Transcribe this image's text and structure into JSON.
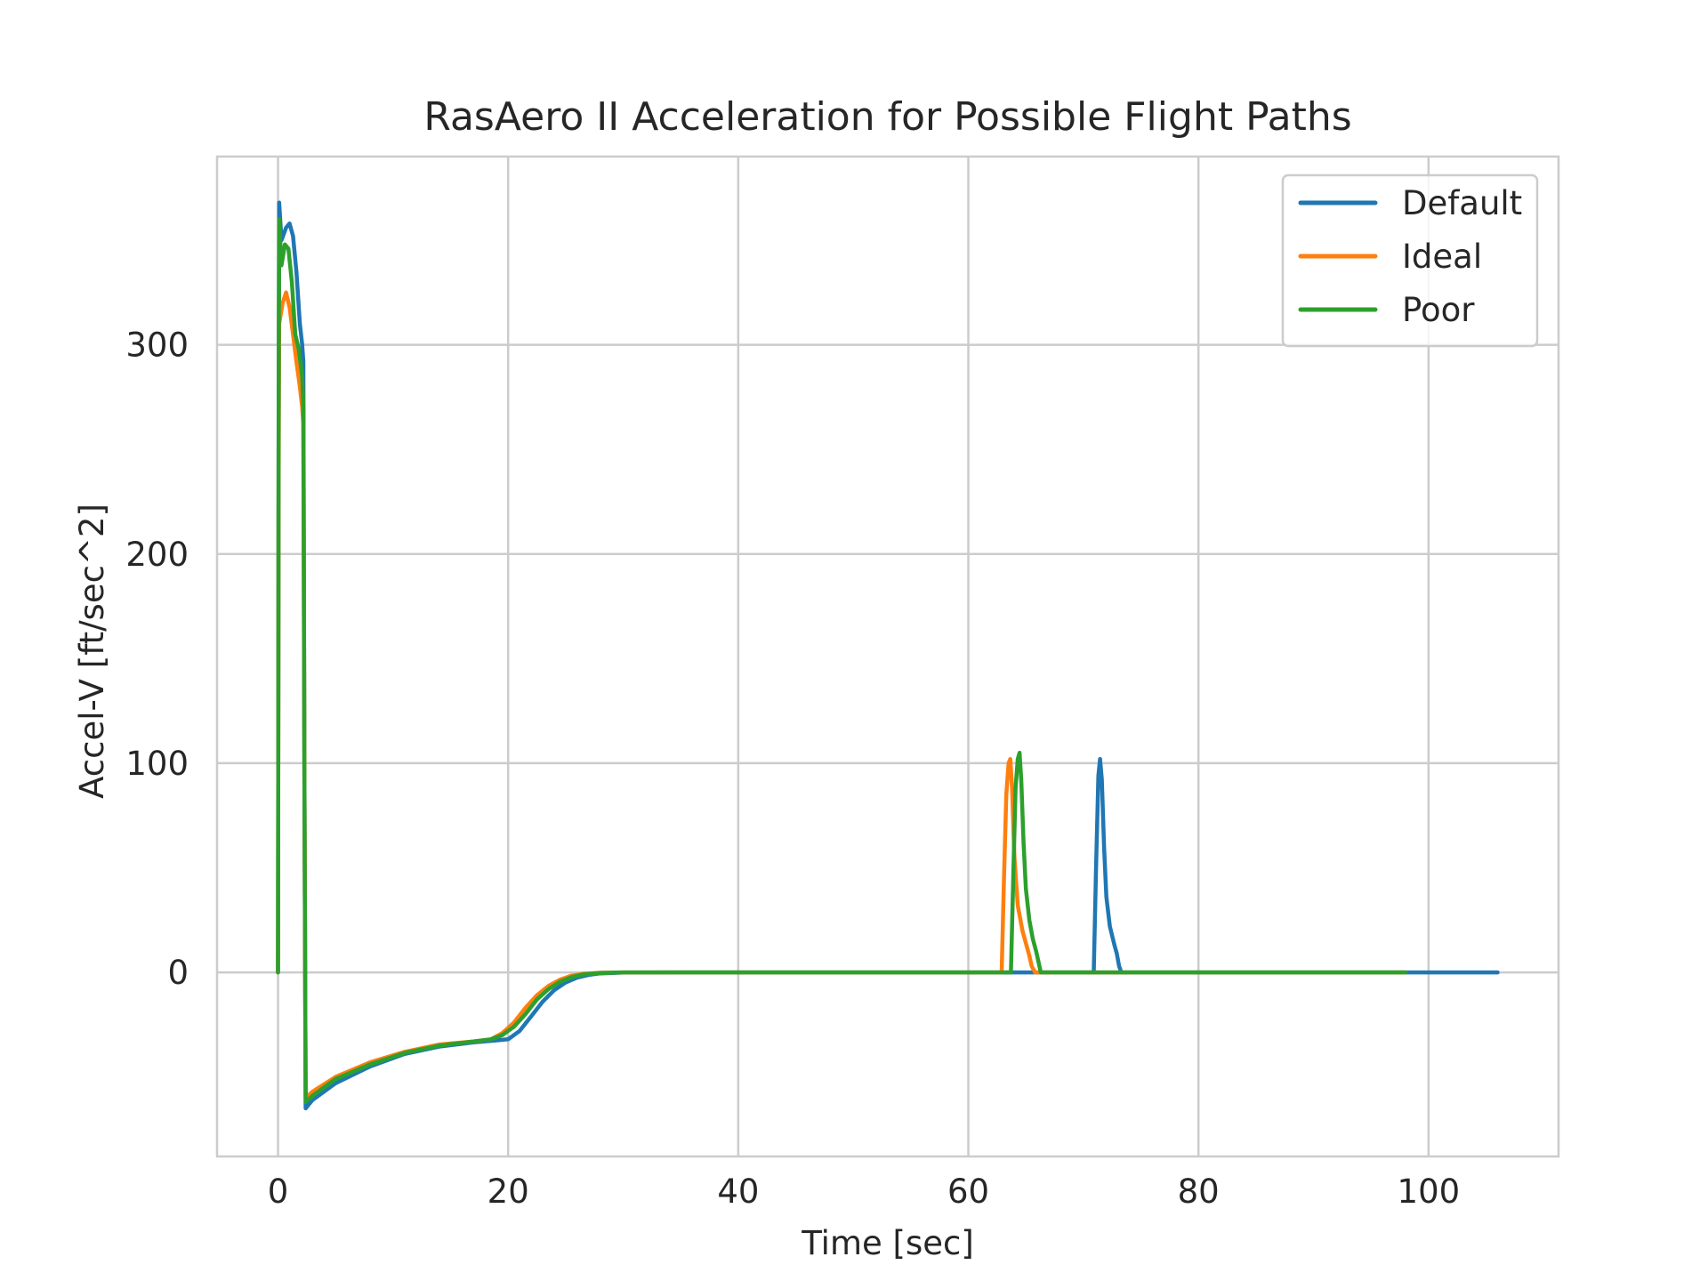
{
  "chart_data": {
    "type": "line",
    "title": "RasAero II Acceleration for Possible Flight Paths",
    "xlabel": "Time [sec]",
    "ylabel": "Accel-V [ft/sec^2]",
    "xlim": [
      -5.3,
      111.3
    ],
    "ylim": [
      -88,
      390
    ],
    "xticks": [
      0,
      20,
      40,
      60,
      80,
      100
    ],
    "yticks": [
      0,
      100,
      200,
      300
    ],
    "grid": true,
    "legend_position": "top-right",
    "series": [
      {
        "name": "Default",
        "color": "#1f77b4",
        "points": [
          [
            0,
            0
          ],
          [
            0.05,
            250
          ],
          [
            0.1,
            368
          ],
          [
            0.3,
            350
          ],
          [
            0.7,
            356
          ],
          [
            1.0,
            358
          ],
          [
            1.3,
            352
          ],
          [
            1.6,
            335
          ],
          [
            1.9,
            310
          ],
          [
            2.1,
            300
          ],
          [
            2.2,
            292
          ],
          [
            2.3,
            80
          ],
          [
            2.4,
            -65
          ],
          [
            3,
            -61
          ],
          [
            5,
            -53
          ],
          [
            8,
            -45
          ],
          [
            11,
            -39
          ],
          [
            14,
            -35.5
          ],
          [
            17,
            -33.5
          ],
          [
            19,
            -32.5
          ],
          [
            20,
            -32
          ],
          [
            21,
            -28
          ],
          [
            22,
            -21
          ],
          [
            23,
            -14
          ],
          [
            24,
            -8.5
          ],
          [
            25,
            -4.8
          ],
          [
            26,
            -2.5
          ],
          [
            27,
            -1.2
          ],
          [
            28,
            -0.5
          ],
          [
            30,
            -0.1
          ],
          [
            35,
            0
          ],
          [
            40,
            0
          ],
          [
            50,
            0
          ],
          [
            60,
            0
          ],
          [
            70,
            0
          ],
          [
            70.9,
            0
          ],
          [
            71.1,
            50
          ],
          [
            71.3,
            94
          ],
          [
            71.45,
            102
          ],
          [
            71.6,
            92
          ],
          [
            71.8,
            60
          ],
          [
            72.0,
            36
          ],
          [
            72.3,
            22
          ],
          [
            72.7,
            13
          ],
          [
            72.9,
            9
          ],
          [
            73.1,
            3
          ],
          [
            73.3,
            0
          ],
          [
            80,
            0
          ],
          [
            90,
            0
          ],
          [
            100,
            0
          ],
          [
            106,
            0
          ]
        ]
      },
      {
        "name": "Ideal",
        "color": "#ff7f0e",
        "points": [
          [
            0,
            0
          ],
          [
            0.05,
            230
          ],
          [
            0.1,
            310
          ],
          [
            0.4,
            320
          ],
          [
            0.7,
            325
          ],
          [
            1.0,
            318
          ],
          [
            1.3,
            305
          ],
          [
            1.6,
            292
          ],
          [
            1.9,
            280
          ],
          [
            2.1,
            270
          ],
          [
            2.2,
            262
          ],
          [
            2.3,
            80
          ],
          [
            2.4,
            -60
          ],
          [
            3,
            -57
          ],
          [
            5,
            -50
          ],
          [
            8,
            -43
          ],
          [
            11,
            -38
          ],
          [
            14,
            -34.5
          ],
          [
            17,
            -33
          ],
          [
            18.5,
            -32
          ],
          [
            19.5,
            -29
          ],
          [
            20.5,
            -24
          ],
          [
            21.5,
            -17
          ],
          [
            22.5,
            -11
          ],
          [
            23.5,
            -6.5
          ],
          [
            24.5,
            -3.5
          ],
          [
            25.5,
            -1.6
          ],
          [
            26.5,
            -0.7
          ],
          [
            28,
            -0.2
          ],
          [
            30,
            0
          ],
          [
            40,
            0
          ],
          [
            50,
            0
          ],
          [
            60,
            0
          ],
          [
            62.9,
            0
          ],
          [
            63.1,
            45
          ],
          [
            63.3,
            85
          ],
          [
            63.5,
            100
          ],
          [
            63.65,
            102
          ],
          [
            63.8,
            88
          ],
          [
            64.0,
            55
          ],
          [
            64.3,
            32
          ],
          [
            64.7,
            20
          ],
          [
            65.1,
            12
          ],
          [
            65.3,
            8
          ],
          [
            65.5,
            3
          ],
          [
            65.8,
            0
          ],
          [
            70,
            0
          ],
          [
            80,
            0
          ],
          [
            90,
            0
          ],
          [
            98,
            0
          ]
        ]
      },
      {
        "name": "Poor",
        "color": "#2ca02c",
        "points": [
          [
            0,
            0
          ],
          [
            0.05,
            260
          ],
          [
            0.1,
            360
          ],
          [
            0.3,
            338
          ],
          [
            0.6,
            348
          ],
          [
            0.9,
            346
          ],
          [
            1.2,
            330
          ],
          [
            1.5,
            305
          ],
          [
            1.8,
            298
          ],
          [
            2.1,
            285
          ],
          [
            2.2,
            270
          ],
          [
            2.3,
            80
          ],
          [
            2.4,
            -62
          ],
          [
            3,
            -59
          ],
          [
            5,
            -51
          ],
          [
            8,
            -44
          ],
          [
            11,
            -38.5
          ],
          [
            14,
            -35
          ],
          [
            17,
            -33
          ],
          [
            18.5,
            -32
          ],
          [
            19.5,
            -30
          ],
          [
            20.5,
            -26
          ],
          [
            21.5,
            -20
          ],
          [
            22.5,
            -13
          ],
          [
            23.5,
            -8
          ],
          [
            24.5,
            -4.5
          ],
          [
            25.5,
            -2.3
          ],
          [
            26.5,
            -1
          ],
          [
            28,
            -0.3
          ],
          [
            30,
            0
          ],
          [
            40,
            0
          ],
          [
            50,
            0
          ],
          [
            60,
            0
          ],
          [
            63.7,
            0
          ],
          [
            63.9,
            45
          ],
          [
            64.1,
            88
          ],
          [
            64.3,
            102
          ],
          [
            64.45,
            105
          ],
          [
            64.6,
            92
          ],
          [
            64.8,
            62
          ],
          [
            65.0,
            40
          ],
          [
            65.3,
            25
          ],
          [
            65.6,
            16
          ],
          [
            65.9,
            10
          ],
          [
            66.1,
            5
          ],
          [
            66.3,
            0
          ],
          [
            70,
            0
          ],
          [
            80,
            0
          ],
          [
            90,
            0
          ],
          [
            98,
            0
          ]
        ]
      }
    ]
  }
}
